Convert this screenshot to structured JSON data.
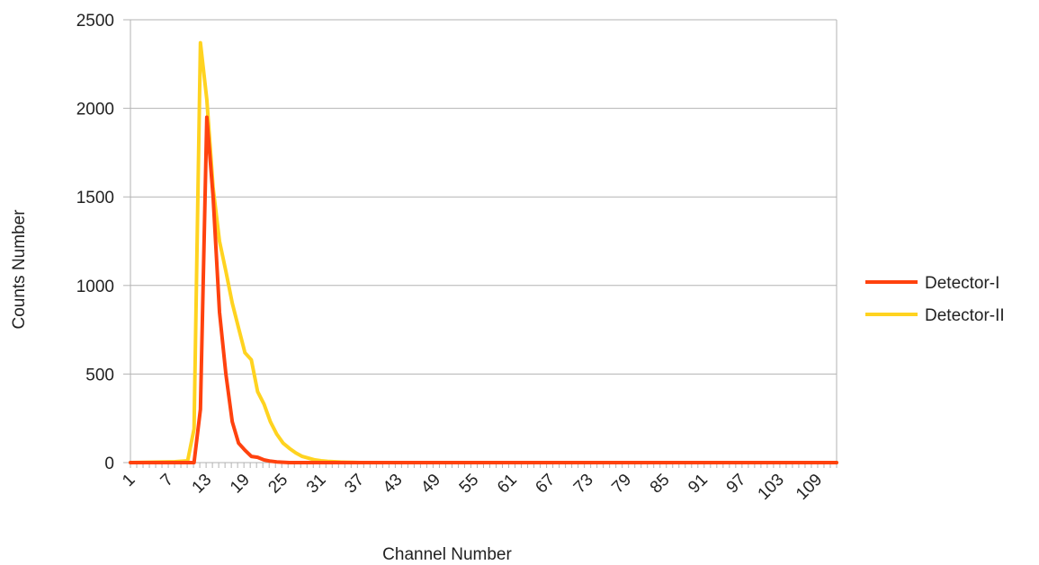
{
  "chart_data": {
    "type": "line",
    "xlabel": "Channel Number",
    "ylabel": "Counts Number",
    "ylim": [
      0,
      2500
    ],
    "yticks": [
      0,
      500,
      1000,
      1500,
      2000,
      2500
    ],
    "x_count": 112,
    "xtick_labels": [
      "1",
      "7",
      "13",
      "19",
      "25",
      "31",
      "37",
      "43",
      "49",
      "55",
      "61",
      "67",
      "73",
      "79",
      "85",
      "91",
      "97",
      "103",
      "109"
    ],
    "grid": "horizontal",
    "legend_position": "right",
    "series": [
      {
        "name": "Detector-I",
        "color": "#ff420e",
        "points": [
          [
            1,
            0
          ],
          [
            10,
            0
          ],
          [
            11,
            0
          ],
          [
            12,
            300
          ],
          [
            13,
            1950
          ],
          [
            14,
            1500
          ],
          [
            15,
            850
          ],
          [
            16,
            500
          ],
          [
            17,
            230
          ],
          [
            18,
            110
          ],
          [
            19,
            70
          ],
          [
            20,
            35
          ],
          [
            21,
            30
          ],
          [
            22,
            15
          ],
          [
            23,
            8
          ],
          [
            24,
            4
          ],
          [
            25,
            2
          ],
          [
            26,
            0
          ],
          [
            112,
            0
          ]
        ]
      },
      {
        "name": "Detector-II",
        "color": "#ffd320",
        "points": [
          [
            1,
            0
          ],
          [
            8,
            5
          ],
          [
            10,
            10
          ],
          [
            11,
            190
          ],
          [
            12,
            2370
          ],
          [
            13,
            2050
          ],
          [
            14,
            1550
          ],
          [
            15,
            1250
          ],
          [
            16,
            1080
          ],
          [
            17,
            900
          ],
          [
            18,
            760
          ],
          [
            19,
            620
          ],
          [
            20,
            580
          ],
          [
            21,
            400
          ],
          [
            22,
            330
          ],
          [
            23,
            230
          ],
          [
            24,
            160
          ],
          [
            25,
            110
          ],
          [
            26,
            80
          ],
          [
            27,
            55
          ],
          [
            28,
            35
          ],
          [
            29,
            25
          ],
          [
            30,
            15
          ],
          [
            31,
            10
          ],
          [
            32,
            7
          ],
          [
            33,
            5
          ],
          [
            34,
            3
          ],
          [
            35,
            2
          ],
          [
            36,
            1
          ],
          [
            37,
            0
          ],
          [
            112,
            0
          ]
        ]
      }
    ]
  }
}
